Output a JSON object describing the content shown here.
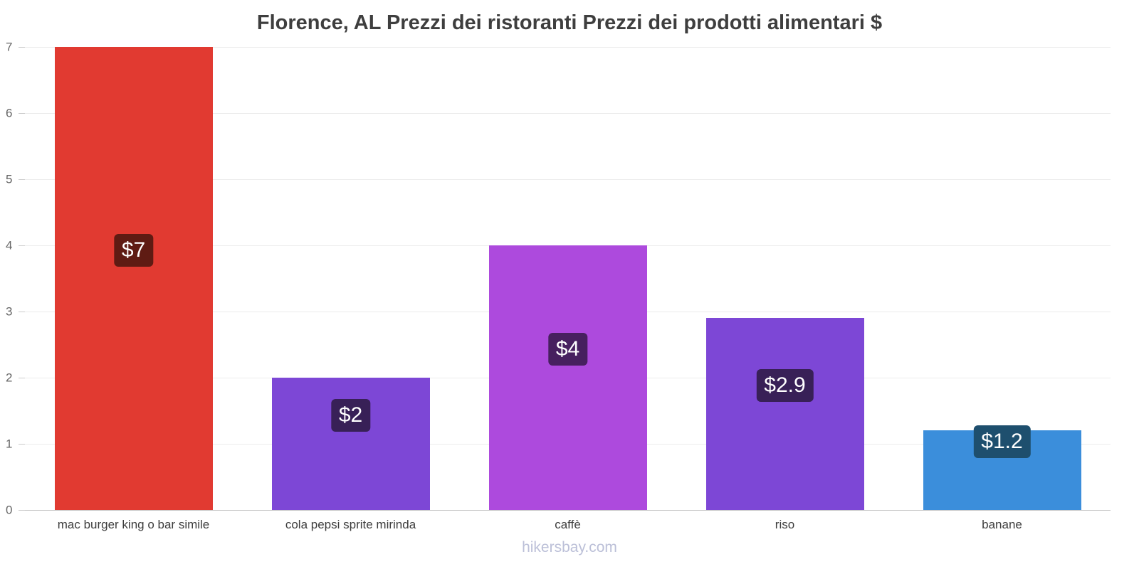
{
  "title": "Florence, AL Prezzi dei ristoranti Prezzi dei prodotti alimentari $",
  "footer": {
    "link_text": "hikersbay.com"
  },
  "chart_data": {
    "type": "bar",
    "title": "Florence, AL Prezzi dei ristoranti Prezzi dei prodotti alimentari $",
    "categories": [
      "mac burger king o bar simile",
      "cola pepsi sprite mirinda",
      "caffè",
      "riso",
      "banane"
    ],
    "values": [
      7,
      2,
      4,
      2.9,
      1.2
    ],
    "value_labels": [
      "$7",
      "$2",
      "$4",
      "$2.9",
      "$1.2"
    ],
    "bar_colors": [
      "#e13a31",
      "#7d47d6",
      "#ad4add",
      "#7d47d6",
      "#3b8edb"
    ],
    "label_bg_colors": [
      "#5f1b13",
      "#382057",
      "#47205f",
      "#382057",
      "#1e4f6e"
    ],
    "xlabel": "",
    "ylabel": "",
    "ylim": [
      0,
      7
    ],
    "yticks": [
      0,
      1,
      2,
      3,
      4,
      5,
      6,
      7
    ],
    "grid": true,
    "legend": false,
    "currency": "$"
  }
}
